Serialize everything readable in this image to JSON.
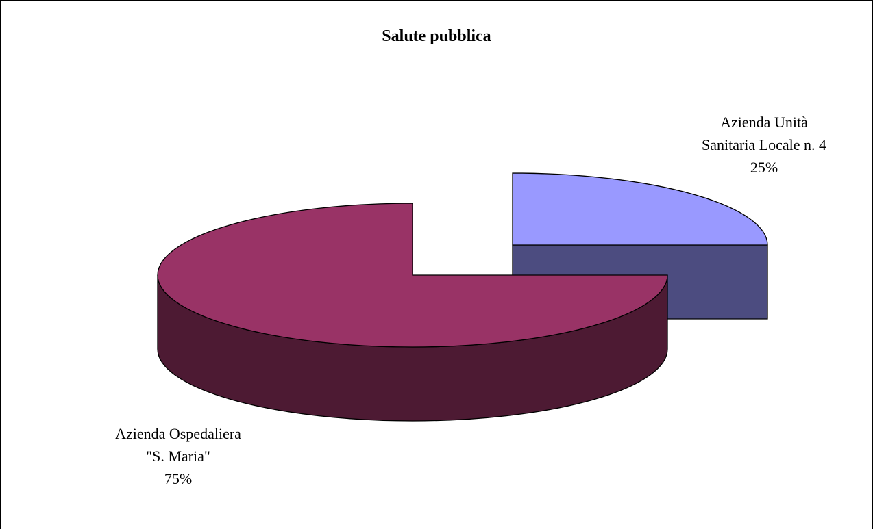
{
  "chart_data": {
    "type": "pie",
    "title": "Salute pubblica",
    "slices": [
      {
        "label_lines": [
          "Azienda Unità",
          "Sanitaria Locale n. 4"
        ],
        "percent_label": "25%",
        "value": 25,
        "top_color": "#9999ff",
        "side_color": "#4c4c80"
      },
      {
        "label_lines": [
          "Azienda Ospedaliera",
          "\"S. Maria\""
        ],
        "percent_label": "75%",
        "value": 75,
        "top_color": "#993366",
        "side_color": "#4d1a33"
      }
    ],
    "legend": "none",
    "exploded_slice": 0
  }
}
